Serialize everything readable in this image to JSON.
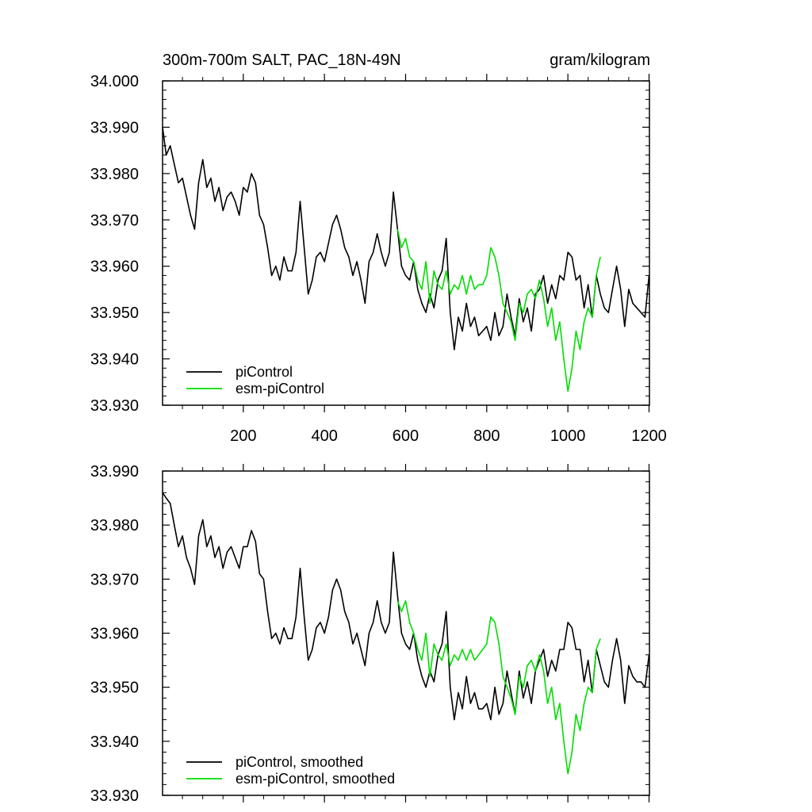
{
  "chart_data": [
    {
      "type": "line",
      "title_left": "300m-700m SALT, PAC_18N-49N",
      "title_right": "gram/kilogram",
      "xlim": [
        1,
        1201
      ],
      "ylim": [
        33.93,
        34.0
      ],
      "xticks": [
        200,
        400,
        600,
        800,
        1000,
        1200
      ],
      "xtick_labels": [
        "200",
        "400",
        "600",
        "800",
        "1000",
        "1200"
      ],
      "yticks": [
        33.93,
        33.94,
        33.95,
        33.96,
        33.97,
        33.98,
        33.99,
        34.0
      ],
      "ytick_labels": [
        "33.930",
        "33.940",
        "33.950",
        "33.960",
        "33.970",
        "33.980",
        "33.990",
        "34.000"
      ],
      "legend_position": "bottom-left",
      "series": [
        {
          "name": "piControl",
          "color": "#000000",
          "x": [
            1,
            10,
            20,
            30,
            40,
            50,
            60,
            70,
            80,
            90,
            100,
            110,
            120,
            130,
            140,
            150,
            160,
            170,
            180,
            190,
            200,
            210,
            220,
            230,
            240,
            250,
            260,
            270,
            280,
            290,
            300,
            310,
            320,
            330,
            340,
            350,
            360,
            370,
            380,
            390,
            400,
            410,
            420,
            430,
            440,
            450,
            460,
            470,
            480,
            490,
            500,
            510,
            520,
            530,
            540,
            550,
            560,
            570,
            580,
            590,
            600,
            610,
            620,
            630,
            640,
            650,
            660,
            670,
            680,
            690,
            700,
            710,
            720,
            730,
            740,
            750,
            760,
            770,
            780,
            790,
            800,
            810,
            820,
            830,
            840,
            850,
            860,
            870,
            880,
            890,
            900,
            910,
            920,
            930,
            940,
            950,
            960,
            970,
            980,
            990,
            1000,
            1010,
            1020,
            1030,
            1040,
            1050,
            1060,
            1070,
            1080,
            1090,
            1100,
            1110,
            1120,
            1130,
            1140,
            1150,
            1160,
            1170,
            1180,
            1190,
            1200
          ],
          "y": [
            33.99,
            33.984,
            33.986,
            33.982,
            33.978,
            33.979,
            33.975,
            33.971,
            33.968,
            33.978,
            33.983,
            33.977,
            33.979,
            33.974,
            33.977,
            33.972,
            33.975,
            33.976,
            33.974,
            33.971,
            33.977,
            33.976,
            33.98,
            33.978,
            33.971,
            33.969,
            33.964,
            33.958,
            33.96,
            33.957,
            33.962,
            33.959,
            33.959,
            33.963,
            33.974,
            33.964,
            33.954,
            33.957,
            33.962,
            33.963,
            33.961,
            33.965,
            33.969,
            33.971,
            33.968,
            33.964,
            33.962,
            33.958,
            33.961,
            33.957,
            33.952,
            33.961,
            33.963,
            33.967,
            33.963,
            33.96,
            33.963,
            33.976,
            33.968,
            33.96,
            33.958,
            33.957,
            33.961,
            33.955,
            33.952,
            33.95,
            33.954,
            33.951,
            33.957,
            33.959,
            33.966,
            33.95,
            33.942,
            33.949,
            33.946,
            33.952,
            33.947,
            33.949,
            33.945,
            33.946,
            33.947,
            33.944,
            33.95,
            33.945,
            33.947,
            33.954,
            33.949,
            33.945,
            33.953,
            33.948,
            33.951,
            33.946,
            33.954,
            33.955,
            33.958,
            33.952,
            33.956,
            33.953,
            33.958,
            33.957,
            33.963,
            33.962,
            33.957,
            33.958,
            33.951,
            33.956,
            33.949,
            33.958,
            33.954,
            33.951,
            33.95,
            33.955,
            33.96,
            33.955,
            33.947,
            33.955,
            33.952,
            33.951,
            33.95,
            33.949,
            33.958
          ]
        },
        {
          "name": "esm-piControl",
          "color": "#00dd00",
          "x": [
            580,
            590,
            600,
            610,
            620,
            630,
            640,
            650,
            660,
            670,
            680,
            690,
            700,
            710,
            720,
            730,
            740,
            750,
            760,
            770,
            780,
            790,
            800,
            810,
            820,
            830,
            840,
            850,
            860,
            870,
            880,
            890,
            900,
            910,
            920,
            930,
            940,
            950,
            960,
            970,
            980,
            990,
            1000,
            1010,
            1020,
            1030,
            1040,
            1050,
            1060,
            1070,
            1080
          ],
          "y": [
            33.968,
            33.964,
            33.966,
            33.962,
            33.961,
            33.957,
            33.955,
            33.961,
            33.952,
            33.959,
            33.956,
            33.955,
            33.959,
            33.954,
            33.956,
            33.955,
            33.958,
            33.954,
            33.958,
            33.955,
            33.956,
            33.956,
            33.958,
            33.964,
            33.962,
            33.958,
            33.952,
            33.95,
            33.948,
            33.944,
            33.952,
            33.95,
            33.954,
            33.955,
            33.953,
            33.957,
            33.953,
            33.947,
            33.951,
            33.944,
            33.948,
            33.94,
            33.933,
            33.938,
            33.946,
            33.942,
            33.948,
            33.951,
            33.949,
            33.958,
            33.962
          ]
        }
      ]
    },
    {
      "type": "line",
      "xlim": [
        1,
        1201
      ],
      "ylim": [
        33.93,
        33.99
      ],
      "xticks": [
        200,
        400,
        600,
        800,
        1000,
        1200
      ],
      "yticks": [
        33.93,
        33.94,
        33.95,
        33.96,
        33.97,
        33.98,
        33.99
      ],
      "ytick_labels": [
        "33.930",
        "33.940",
        "33.950",
        "33.960",
        "33.970",
        "33.980",
        "33.990"
      ],
      "legend_position": "bottom-left",
      "series": [
        {
          "name": "piControl, smoothed",
          "color": "#000000",
          "x": [
            1,
            10,
            20,
            30,
            40,
            50,
            60,
            70,
            80,
            90,
            100,
            110,
            120,
            130,
            140,
            150,
            160,
            170,
            180,
            190,
            200,
            210,
            220,
            230,
            240,
            250,
            260,
            270,
            280,
            290,
            300,
            310,
            320,
            330,
            340,
            350,
            360,
            370,
            380,
            390,
            400,
            410,
            420,
            430,
            440,
            450,
            460,
            470,
            480,
            490,
            500,
            510,
            520,
            530,
            540,
            550,
            560,
            570,
            580,
            590,
            600,
            610,
            620,
            630,
            640,
            650,
            660,
            670,
            680,
            690,
            700,
            710,
            720,
            730,
            740,
            750,
            760,
            770,
            780,
            790,
            800,
            810,
            820,
            830,
            840,
            850,
            860,
            870,
            880,
            890,
            900,
            910,
            920,
            930,
            940,
            950,
            960,
            970,
            980,
            990,
            1000,
            1010,
            1020,
            1030,
            1040,
            1050,
            1060,
            1070,
            1080,
            1090,
            1100,
            1110,
            1120,
            1130,
            1140,
            1150,
            1160,
            1170,
            1180,
            1190,
            1200
          ],
          "y": [
            33.986,
            33.985,
            33.984,
            33.98,
            33.976,
            33.978,
            33.974,
            33.972,
            33.969,
            33.978,
            33.981,
            33.976,
            33.978,
            33.974,
            33.976,
            33.972,
            33.975,
            33.976,
            33.974,
            33.972,
            33.976,
            33.976,
            33.979,
            33.977,
            33.971,
            33.97,
            33.964,
            33.959,
            33.96,
            33.958,
            33.961,
            33.959,
            33.959,
            33.963,
            33.972,
            33.963,
            33.955,
            33.957,
            33.961,
            33.962,
            33.96,
            33.963,
            33.968,
            33.97,
            33.968,
            33.964,
            33.962,
            33.958,
            33.96,
            33.957,
            33.954,
            33.96,
            33.962,
            33.966,
            33.962,
            33.96,
            33.962,
            33.975,
            33.967,
            33.96,
            33.958,
            33.957,
            33.96,
            33.955,
            33.952,
            33.95,
            33.953,
            33.951,
            33.956,
            33.958,
            33.964,
            33.95,
            33.944,
            33.949,
            33.946,
            33.952,
            33.947,
            33.949,
            33.946,
            33.946,
            33.947,
            33.944,
            33.95,
            33.945,
            33.947,
            33.953,
            33.949,
            33.945,
            33.953,
            33.948,
            33.951,
            33.947,
            33.953,
            33.955,
            33.957,
            33.952,
            33.955,
            33.953,
            33.957,
            33.957,
            33.962,
            33.961,
            33.957,
            33.957,
            33.951,
            33.955,
            33.949,
            33.957,
            33.954,
            33.951,
            33.95,
            33.955,
            33.959,
            33.955,
            33.947,
            33.954,
            33.952,
            33.951,
            33.951,
            33.95,
            33.956
          ]
        },
        {
          "name": "esm-piControl, smoothed",
          "color": "#00dd00",
          "x": [
            580,
            590,
            600,
            610,
            620,
            630,
            640,
            650,
            660,
            670,
            680,
            690,
            700,
            710,
            720,
            730,
            740,
            750,
            760,
            770,
            780,
            790,
            800,
            810,
            820,
            830,
            840,
            850,
            860,
            870,
            880,
            890,
            900,
            910,
            920,
            930,
            940,
            950,
            960,
            970,
            980,
            990,
            1000,
            1010,
            1020,
            1030,
            1040,
            1050,
            1060,
            1070,
            1080
          ],
          "y": [
            33.966,
            33.964,
            33.966,
            33.962,
            33.96,
            33.957,
            33.955,
            33.96,
            33.952,
            33.958,
            33.956,
            33.955,
            33.958,
            33.954,
            33.956,
            33.955,
            33.957,
            33.955,
            33.957,
            33.955,
            33.956,
            33.957,
            33.958,
            33.963,
            33.962,
            33.958,
            33.952,
            33.95,
            33.948,
            33.945,
            33.952,
            33.95,
            33.954,
            33.955,
            33.953,
            33.956,
            33.953,
            33.947,
            33.95,
            33.944,
            33.947,
            33.94,
            33.934,
            33.938,
            33.945,
            33.942,
            33.947,
            33.95,
            33.949,
            33.957,
            33.959
          ]
        }
      ]
    }
  ]
}
